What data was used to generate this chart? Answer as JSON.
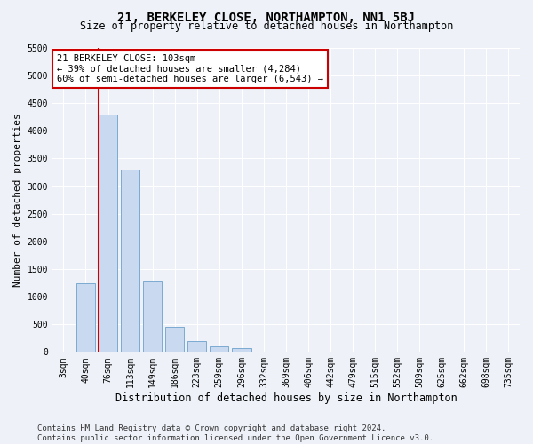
{
  "title": "21, BERKELEY CLOSE, NORTHAMPTON, NN1 5BJ",
  "subtitle": "Size of property relative to detached houses in Northampton",
  "xlabel": "Distribution of detached houses by size in Northampton",
  "ylabel": "Number of detached properties",
  "categories": [
    "3sqm",
    "40sqm",
    "76sqm",
    "113sqm",
    "149sqm",
    "186sqm",
    "223sqm",
    "259sqm",
    "296sqm",
    "332sqm",
    "369sqm",
    "406sqm",
    "442sqm",
    "479sqm",
    "515sqm",
    "552sqm",
    "589sqm",
    "625sqm",
    "662sqm",
    "698sqm",
    "735sqm"
  ],
  "bar_values": [
    0,
    1250,
    4300,
    3300,
    1270,
    460,
    200,
    100,
    65,
    0,
    0,
    0,
    0,
    0,
    0,
    0,
    0,
    0,
    0,
    0,
    0
  ],
  "bar_color": "#c9d9f0",
  "bar_edgecolor": "#7aaad0",
  "vline_x_index": 2,
  "annotation_text": "21 BERKELEY CLOSE: 103sqm\n← 39% of detached houses are smaller (4,284)\n60% of semi-detached houses are larger (6,543) →",
  "annotation_box_color": "#ffffff",
  "annotation_box_edgecolor": "#cc0000",
  "vline_color": "#cc0000",
  "ylim": [
    0,
    5500
  ],
  "yticks": [
    0,
    500,
    1000,
    1500,
    2000,
    2500,
    3000,
    3500,
    4000,
    4500,
    5000,
    5500
  ],
  "footer": "Contains HM Land Registry data © Crown copyright and database right 2024.\nContains public sector information licensed under the Open Government Licence v3.0.",
  "bg_color": "#eef2f8",
  "plot_bg_color": "#eef2f8",
  "title_fontsize": 10,
  "subtitle_fontsize": 8.5,
  "xlabel_fontsize": 8.5,
  "ylabel_fontsize": 8,
  "tick_fontsize": 7,
  "footer_fontsize": 6.5
}
